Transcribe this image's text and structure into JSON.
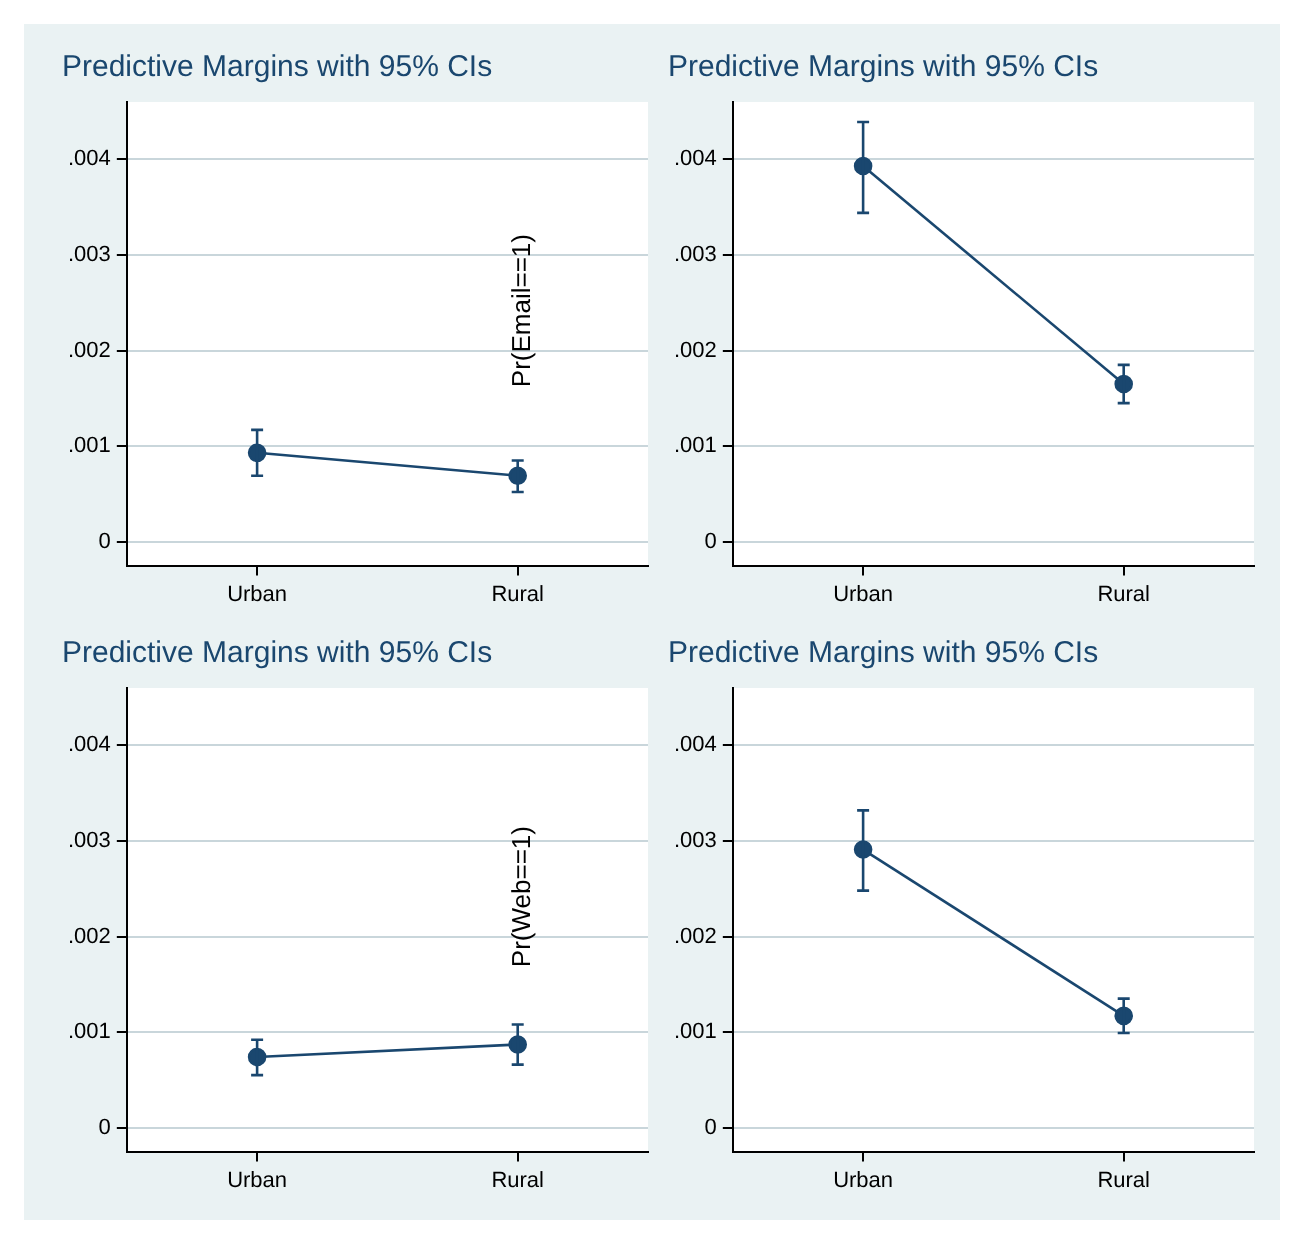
{
  "chart_data": [
    {
      "type": "line",
      "title": "Predictive Margins with 95% CIs",
      "ylabel": "Pr(Email==1)",
      "categories": [
        "Urban",
        "Rural"
      ],
      "series": [
        {
          "color": "#1a476f",
          "values": [
            0.00093,
            0.00069
          ],
          "errors": [
            [
              0.00069,
              0.00117
            ],
            [
              0.00052,
              0.00085
            ]
          ]
        }
      ],
      "ylim": [
        -0.00025,
        0.0046
      ],
      "yticks": [
        {
          "value": 0,
          "label": "0"
        },
        {
          "value": 0.001,
          "label": ".001"
        },
        {
          "value": 0.002,
          "label": ".002"
        },
        {
          "value": 0.003,
          "label": ".003"
        },
        {
          "value": 0.004,
          "label": ".004"
        }
      ],
      "grid": "y",
      "marker": "circle",
      "line_style": "solid",
      "legend": false
    },
    {
      "type": "line",
      "title": "Predictive Margins with 95% CIs",
      "categories": [
        "Urban",
        "Rural"
      ],
      "series": [
        {
          "color": "#1a476f",
          "values": [
            0.00393,
            0.00165
          ],
          "errors": [
            [
              0.00344,
              0.00439
            ],
            [
              0.00145,
              0.00185
            ]
          ]
        }
      ],
      "ylim": [
        -0.00025,
        0.0046
      ],
      "yticks": [
        {
          "value": 0,
          "label": "0"
        },
        {
          "value": 0.001,
          "label": ".001"
        },
        {
          "value": 0.002,
          "label": ".002"
        },
        {
          "value": 0.003,
          "label": ".003"
        },
        {
          "value": 0.004,
          "label": ".004"
        }
      ],
      "grid": "y",
      "marker": "circle",
      "line_style": "solid",
      "legend": false
    },
    {
      "type": "line",
      "title": "Predictive Margins with 95% CIs",
      "ylabel": "Pr(Web==1)",
      "categories": [
        "Urban",
        "Rural"
      ],
      "series": [
        {
          "color": "#1a476f",
          "values": [
            0.00074,
            0.00087
          ],
          "errors": [
            [
              0.00055,
              0.00092
            ],
            [
              0.00066,
              0.00108
            ]
          ]
        }
      ],
      "ylim": [
        -0.00025,
        0.0046
      ],
      "yticks": [
        {
          "value": 0,
          "label": "0"
        },
        {
          "value": 0.001,
          "label": ".001"
        },
        {
          "value": 0.002,
          "label": ".002"
        },
        {
          "value": 0.003,
          "label": ".003"
        },
        {
          "value": 0.004,
          "label": ".004"
        }
      ],
      "grid": "y",
      "marker": "circle",
      "line_style": "solid",
      "legend": false
    },
    {
      "type": "line",
      "title": "Predictive Margins with 95% CIs",
      "categories": [
        "Urban",
        "Rural"
      ],
      "series": [
        {
          "color": "#1a476f",
          "values": [
            0.00291,
            0.00117
          ],
          "errors": [
            [
              0.00248,
              0.00332
            ],
            [
              0.00099,
              0.00135
            ]
          ]
        }
      ],
      "ylim": [
        -0.00025,
        0.0046
      ],
      "yticks": [
        {
          "value": 0,
          "label": "0"
        },
        {
          "value": 0.001,
          "label": ".001"
        },
        {
          "value": 0.002,
          "label": ".002"
        },
        {
          "value": 0.003,
          "label": ".003"
        },
        {
          "value": 0.004,
          "label": ".004"
        }
      ],
      "grid": "y",
      "marker": "circle",
      "line_style": "solid",
      "legend": false
    }
  ]
}
